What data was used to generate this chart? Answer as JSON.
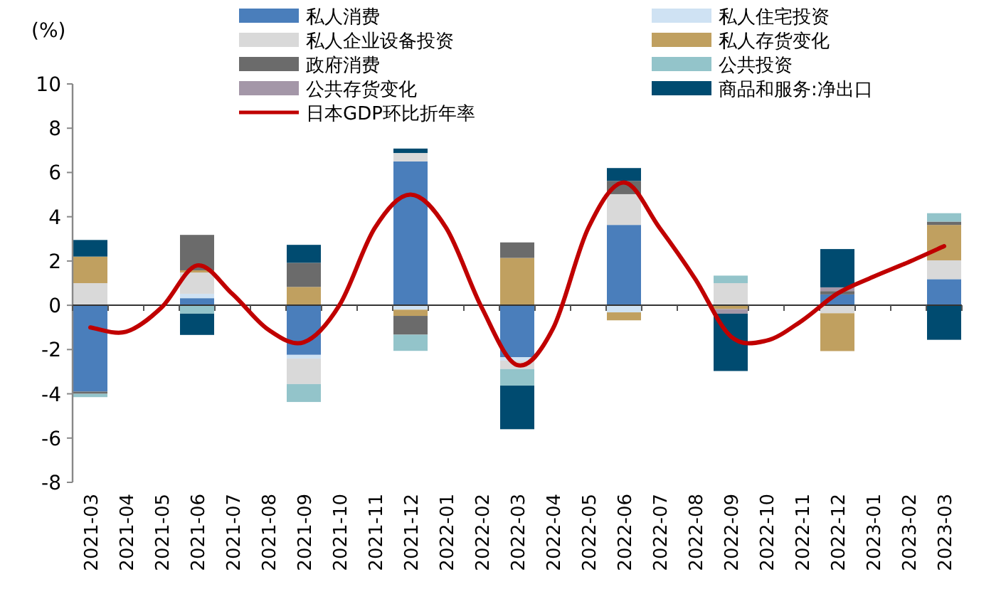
{
  "chart_data": {
    "type": "bar",
    "stacked": true,
    "ylabel": "(%)",
    "legend": "top",
    "categories": [
      "2021-03",
      "2021-04",
      "2021-05",
      "2021-06",
      "2021-07",
      "2021-08",
      "2021-09",
      "2021-10",
      "2021-11",
      "2021-12",
      "2022-01",
      "2022-02",
      "2022-03",
      "2022-04",
      "2022-05",
      "2022-06",
      "2022-07",
      "2022-08",
      "2022-09",
      "2022-10",
      "2022-11",
      "2022-12",
      "2023-01",
      "2023-02",
      "2023-03"
    ],
    "ylim": [
      -8,
      10
    ],
    "yticks": [
      -8,
      -6,
      -4,
      -2,
      0,
      2,
      4,
      6,
      8,
      10
    ],
    "series": [
      {
        "name": "私人消费",
        "color": "#4a7ebb",
        "values": [
          -3.9,
          null,
          null,
          0.32,
          null,
          null,
          -2.24,
          null,
          null,
          6.5,
          null,
          null,
          -2.35,
          null,
          null,
          3.63,
          null,
          null,
          null,
          null,
          null,
          0.49,
          null,
          null,
          1.18
        ]
      },
      {
        "name": "私人住宅投资",
        "color": "#cfe2f3",
        "values": [
          null,
          null,
          null,
          0.2,
          null,
          null,
          -0.17,
          null,
          null,
          -0.2,
          null,
          null,
          -0.15,
          null,
          null,
          -0.32,
          null,
          null,
          null,
          null,
          null,
          null,
          null,
          null,
          null
        ]
      },
      {
        "name": "私人企业设备投资",
        "color": "#d9d9d9",
        "values": [
          1.0,
          null,
          null,
          0.96,
          null,
          null,
          -1.15,
          null,
          null,
          0.38,
          null,
          null,
          -0.38,
          null,
          null,
          1.39,
          null,
          null,
          1.0,
          null,
          null,
          -0.36,
          null,
          null,
          0.85
        ]
      },
      {
        "name": "私人存货变化",
        "color": "#c0a060",
        "values": [
          1.2,
          null,
          null,
          0.1,
          null,
          null,
          0.83,
          null,
          null,
          -0.28,
          null,
          null,
          2.14,
          null,
          null,
          -0.36,
          null,
          null,
          -0.17,
          null,
          null,
          -1.71,
          null,
          null,
          1.6
        ]
      },
      {
        "name": "政府消费",
        "color": "#6b6b6b",
        "values": [
          -0.1,
          null,
          null,
          1.6,
          null,
          null,
          1.09,
          null,
          null,
          -0.85,
          null,
          null,
          0.7,
          null,
          null,
          0.6,
          null,
          null,
          null,
          null,
          null,
          0.15,
          null,
          null,
          0.15
        ]
      },
      {
        "name": "公共投资",
        "color": "#93c4ca",
        "values": [
          -0.15,
          null,
          null,
          -0.38,
          null,
          null,
          -0.81,
          null,
          null,
          -0.73,
          null,
          null,
          -0.75,
          null,
          null,
          null,
          null,
          null,
          0.34,
          null,
          null,
          null,
          null,
          null,
          0.38
        ]
      },
      {
        "name": "公共存货变化",
        "color": "#a497a8",
        "values": [
          null,
          null,
          null,
          null,
          null,
          null,
          null,
          null,
          null,
          null,
          null,
          null,
          null,
          null,
          null,
          null,
          null,
          null,
          -0.21,
          null,
          null,
          0.17,
          null,
          null,
          null
        ]
      },
      {
        "name": "商品和服务:净出口",
        "color": "#004b70",
        "values": [
          0.75,
          null,
          null,
          -0.96,
          null,
          null,
          0.81,
          null,
          null,
          0.2,
          null,
          null,
          -1.97,
          null,
          null,
          0.58,
          null,
          null,
          -2.59,
          null,
          null,
          1.73,
          null,
          null,
          -1.56
        ]
      },
      {
        "name": "日本GDP环比折年率",
        "type": "line",
        "color": "#c00000",
        "values": [
          -1.0,
          -1.2,
          -0.1,
          1.8,
          0.5,
          -1.1,
          -1.67,
          0.0,
          3.5,
          5.0,
          3.5,
          -0.1,
          -2.7,
          -1.07,
          3.5,
          5.55,
          3.5,
          1.2,
          -1.4,
          -1.6,
          -0.7,
          0.53,
          1.28,
          1.95,
          2.67
        ]
      }
    ]
  }
}
